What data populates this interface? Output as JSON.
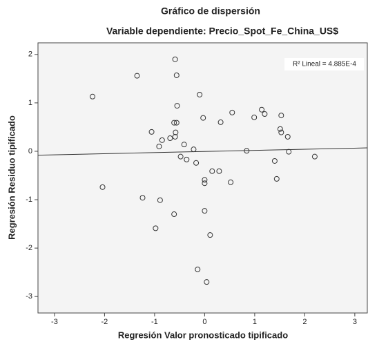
{
  "chart_data": {
    "type": "scatter",
    "title": "Gráfico de dispersión",
    "subtitle": "Variable dependiente: Precio_Spot_Fe_China_US$",
    "x_label": "Regresión Valor pronosticado tipificado",
    "y_label": "Regresión Residuo tipificado",
    "annotation": "R² Lineal = 4.885E-4",
    "x": [
      -2.24,
      -1.35,
      -0.59,
      -0.56,
      -0.1,
      -0.55,
      -0.03,
      0.55,
      0.32,
      0.99,
      1.14,
      1.2,
      1.53,
      1.51,
      1.53,
      1.66,
      -1.06,
      -0.85,
      -0.91,
      -0.61,
      -0.56,
      -0.58,
      -0.69,
      -0.59,
      -0.41,
      -0.22,
      -0.48,
      -0.36,
      -0.17,
      0.84,
      1.68,
      1.4,
      2.2,
      0.15,
      0.29,
      0.0,
      0.0,
      0.52,
      1.44,
      -2.04,
      -1.24,
      -0.89,
      0.0,
      -0.61,
      -0.98,
      0.11,
      -0.14,
      0.04
    ],
    "values": [
      1.13,
      1.56,
      1.9,
      1.57,
      1.17,
      0.94,
      0.69,
      0.8,
      0.6,
      0.7,
      0.86,
      0.77,
      0.74,
      0.46,
      0.39,
      0.3,
      0.4,
      0.23,
      0.1,
      0.59,
      0.59,
      0.39,
      0.27,
      0.3,
      0.14,
      0.04,
      -0.11,
      -0.17,
      -0.24,
      0.01,
      -0.01,
      -0.2,
      -0.11,
      -0.41,
      -0.41,
      -0.59,
      -0.66,
      -0.64,
      -0.57,
      -0.74,
      -0.96,
      -1.01,
      -1.23,
      -1.3,
      -1.59,
      -1.73,
      -2.44,
      -2.7
    ],
    "color": "#333333",
    "fit_line": {
      "x": [
        -3.33,
        3.25
      ],
      "y": [
        -0.08,
        0.07
      ]
    },
    "xlim": [
      -3.33,
      3.25
    ],
    "xticks": [
      -3,
      -2,
      -1,
      0,
      1,
      2,
      3
    ],
    "ylim": [
      -3.34,
      2.24
    ],
    "yticks": [
      -3,
      -2,
      -1,
      0,
      1,
      2
    ],
    "grid": false
  }
}
